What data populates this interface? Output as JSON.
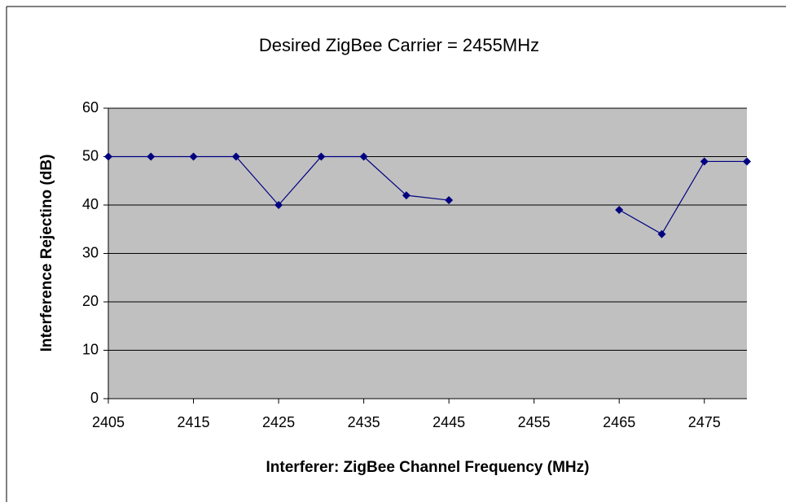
{
  "chart_data": {
    "type": "line",
    "title": "Desired ZigBee Carrier = 2455MHz",
    "x_label": "Interferer: ZigBee Channel Frequency (MHz)",
    "y_label": "Interference Rejectino (dB)",
    "x": [
      2405,
      2410,
      2415,
      2420,
      2425,
      2430,
      2435,
      2440,
      2445,
      2450,
      2455,
      2460,
      2465,
      2470,
      2475,
      2480
    ],
    "values": [
      50,
      50,
      50,
      50,
      40,
      50,
      50,
      42,
      41,
      null,
      null,
      null,
      39,
      34,
      49,
      49
    ],
    "color": "#000080",
    "plot_background": "#c0c0c0",
    "xlim": [
      2405,
      2480
    ],
    "xticks": [
      2405,
      2415,
      2425,
      2435,
      2445,
      2455,
      2465,
      2475
    ],
    "ylim": [
      0,
      60
    ],
    "yticks": [
      0,
      10,
      20,
      30,
      40,
      50,
      60
    ],
    "grid": true
  }
}
